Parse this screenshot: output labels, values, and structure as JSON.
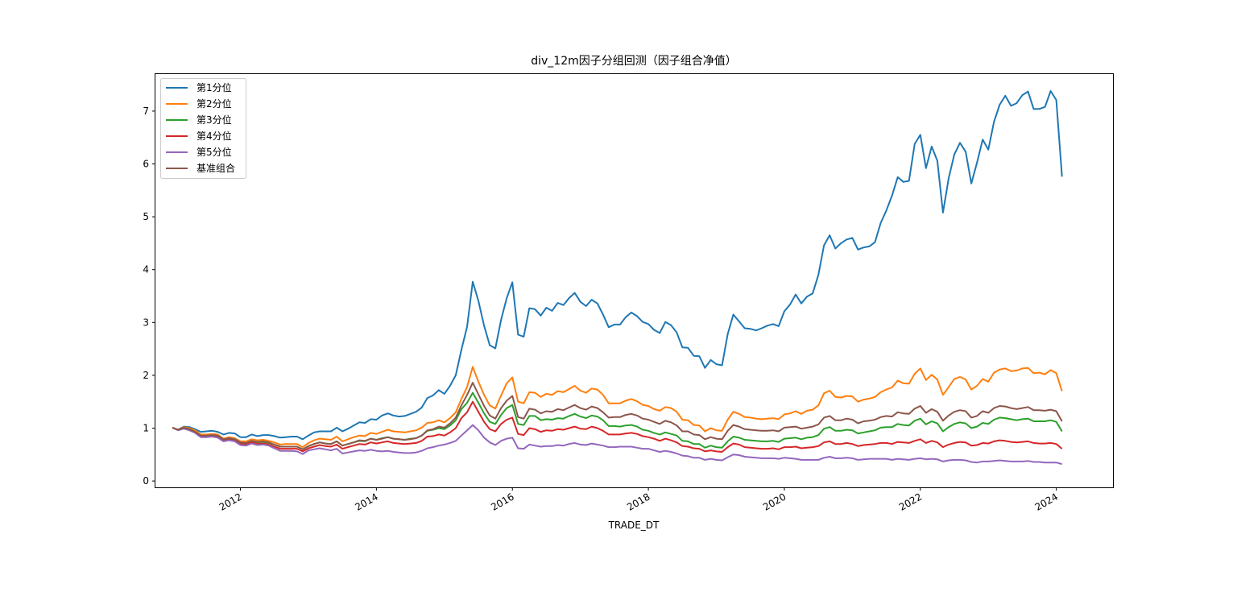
{
  "chart_data": {
    "type": "line",
    "title": "div_12m因子分组回测（因子组合净值）",
    "xlabel": "TRADE_DT",
    "ylabel": "",
    "x_tick_labels": [
      "2012",
      "2014",
      "2016",
      "2018",
      "2020",
      "2022",
      "2024"
    ],
    "y_tick_labels": [
      "0",
      "1",
      "2",
      "3",
      "4",
      "5",
      "6",
      "7"
    ],
    "xlim": [
      "2010-10",
      "2024-11"
    ],
    "ylim": [
      -0.12,
      7.7
    ],
    "grid": false,
    "legend_position": "upper-left",
    "x": [
      "2011-01",
      "2011-02",
      "2011-03",
      "2011-04",
      "2011-05",
      "2011-06",
      "2011-07",
      "2011-08",
      "2011-09",
      "2011-10",
      "2011-11",
      "2011-12",
      "2012-01",
      "2012-02",
      "2012-03",
      "2012-04",
      "2012-05",
      "2012-06",
      "2012-07",
      "2012-08",
      "2012-09",
      "2012-10",
      "2012-11",
      "2012-12",
      "2013-01",
      "2013-02",
      "2013-03",
      "2013-04",
      "2013-05",
      "2013-06",
      "2013-07",
      "2013-08",
      "2013-09",
      "2013-10",
      "2013-11",
      "2013-12",
      "2014-01",
      "2014-02",
      "2014-03",
      "2014-04",
      "2014-05",
      "2014-06",
      "2014-07",
      "2014-08",
      "2014-09",
      "2014-10",
      "2014-11",
      "2014-12",
      "2015-01",
      "2015-02",
      "2015-03",
      "2015-04",
      "2015-05",
      "2015-06",
      "2015-07",
      "2015-08",
      "2015-09",
      "2015-10",
      "2015-11",
      "2015-12",
      "2016-01",
      "2016-02",
      "2016-03",
      "2016-04",
      "2016-05",
      "2016-06",
      "2016-07",
      "2016-08",
      "2016-09",
      "2016-10",
      "2016-11",
      "2016-12",
      "2017-01",
      "2017-02",
      "2017-03",
      "2017-04",
      "2017-05",
      "2017-06",
      "2017-07",
      "2017-08",
      "2017-09",
      "2017-10",
      "2017-11",
      "2017-12",
      "2018-01",
      "2018-02",
      "2018-03",
      "2018-04",
      "2018-05",
      "2018-06",
      "2018-07",
      "2018-08",
      "2018-09",
      "2018-10",
      "2018-11",
      "2018-12",
      "2019-01",
      "2019-02",
      "2019-03",
      "2019-04",
      "2019-05",
      "2019-06",
      "2019-07",
      "2019-08",
      "2019-09",
      "2019-10",
      "2019-11",
      "2019-12",
      "2020-01",
      "2020-02",
      "2020-03",
      "2020-04",
      "2020-05",
      "2020-06",
      "2020-07",
      "2020-08",
      "2020-09",
      "2020-10",
      "2020-11",
      "2020-12",
      "2021-01",
      "2021-02",
      "2021-03",
      "2021-04",
      "2021-05",
      "2021-06",
      "2021-07",
      "2021-08",
      "2021-09",
      "2021-10",
      "2021-11",
      "2021-12",
      "2022-01",
      "2022-02",
      "2022-03",
      "2022-04",
      "2022-05",
      "2022-06",
      "2022-07",
      "2022-08",
      "2022-09",
      "2022-10",
      "2022-11",
      "2022-12",
      "2023-01",
      "2023-02",
      "2023-03",
      "2023-04",
      "2023-05",
      "2023-06",
      "2023-07",
      "2023-08",
      "2023-09",
      "2023-10",
      "2023-11",
      "2023-12",
      "2024-01",
      "2024-02"
    ],
    "series": [
      {
        "name": "第1分位",
        "color": "#1f77b4",
        "values": [
          1.01,
          0.97,
          1.03,
          1.02,
          0.98,
          0.93,
          0.94,
          0.95,
          0.93,
          0.88,
          0.91,
          0.9,
          0.83,
          0.83,
          0.88,
          0.85,
          0.87,
          0.87,
          0.85,
          0.82,
          0.83,
          0.84,
          0.84,
          0.79,
          0.86,
          0.92,
          0.94,
          0.94,
          0.94,
          1.01,
          0.94,
          0.99,
          1.05,
          1.11,
          1.1,
          1.17,
          1.16,
          1.24,
          1.28,
          1.24,
          1.22,
          1.23,
          1.27,
          1.31,
          1.39,
          1.57,
          1.62,
          1.72,
          1.65,
          1.8,
          2.0,
          2.48,
          2.92,
          3.77,
          3.41,
          2.94,
          2.57,
          2.51,
          3.05,
          3.46,
          3.76,
          2.77,
          2.73,
          3.27,
          3.25,
          3.13,
          3.28,
          3.22,
          3.37,
          3.33,
          3.46,
          3.56,
          3.39,
          3.31,
          3.43,
          3.36,
          3.15,
          2.91,
          2.96,
          2.96,
          3.1,
          3.19,
          3.12,
          3.01,
          2.97,
          2.86,
          2.8,
          3.01,
          2.95,
          2.81,
          2.53,
          2.52,
          2.37,
          2.36,
          2.14,
          2.29,
          2.21,
          2.19,
          2.78,
          3.15,
          3.02,
          2.89,
          2.88,
          2.85,
          2.89,
          2.94,
          2.97,
          2.93,
          3.21,
          3.34,
          3.53,
          3.36,
          3.49,
          3.55,
          3.9,
          4.46,
          4.65,
          4.4,
          4.5,
          4.57,
          4.6,
          4.38,
          4.42,
          4.44,
          4.52,
          4.88,
          5.12,
          5.4,
          5.75,
          5.66,
          5.68,
          6.38,
          6.55,
          5.92,
          6.33,
          6.06,
          5.08,
          5.73,
          6.18,
          6.4,
          6.23,
          5.63,
          6.02,
          6.46,
          6.27,
          6.8,
          7.12,
          7.29,
          7.1,
          7.15,
          7.3,
          7.37,
          7.04,
          7.04,
          7.08,
          7.38,
          7.21,
          5.76
        ]
      },
      {
        "name": "第2分位",
        "color": "#ff7f0e",
        "values": [
          1.01,
          0.97,
          1.02,
          1.0,
          0.96,
          0.88,
          0.88,
          0.89,
          0.88,
          0.8,
          0.83,
          0.81,
          0.75,
          0.75,
          0.79,
          0.77,
          0.78,
          0.76,
          0.73,
          0.69,
          0.7,
          0.7,
          0.7,
          0.64,
          0.72,
          0.77,
          0.8,
          0.79,
          0.78,
          0.84,
          0.75,
          0.79,
          0.83,
          0.86,
          0.85,
          0.91,
          0.89,
          0.93,
          0.97,
          0.94,
          0.93,
          0.92,
          0.94,
          0.96,
          1.01,
          1.1,
          1.11,
          1.15,
          1.11,
          1.19,
          1.3,
          1.55,
          1.78,
          2.16,
          1.88,
          1.63,
          1.43,
          1.37,
          1.62,
          1.85,
          1.96,
          1.5,
          1.47,
          1.68,
          1.67,
          1.59,
          1.65,
          1.63,
          1.7,
          1.68,
          1.74,
          1.8,
          1.71,
          1.67,
          1.75,
          1.73,
          1.63,
          1.47,
          1.47,
          1.47,
          1.52,
          1.55,
          1.51,
          1.44,
          1.42,
          1.36,
          1.33,
          1.4,
          1.38,
          1.31,
          1.16,
          1.15,
          1.06,
          1.05,
          0.94,
          1.0,
          0.96,
          0.95,
          1.16,
          1.31,
          1.27,
          1.21,
          1.2,
          1.18,
          1.17,
          1.18,
          1.19,
          1.17,
          1.26,
          1.28,
          1.32,
          1.27,
          1.33,
          1.35,
          1.43,
          1.66,
          1.71,
          1.59,
          1.58,
          1.61,
          1.6,
          1.5,
          1.54,
          1.56,
          1.59,
          1.68,
          1.73,
          1.77,
          1.9,
          1.85,
          1.84,
          2.03,
          2.13,
          1.91,
          2.01,
          1.92,
          1.63,
          1.78,
          1.93,
          1.97,
          1.92,
          1.73,
          1.8,
          1.93,
          1.88,
          2.05,
          2.11,
          2.13,
          2.08,
          2.09,
          2.13,
          2.14,
          2.04,
          2.05,
          2.02,
          2.1,
          2.04,
          1.7
        ]
      },
      {
        "name": "第3分位",
        "color": "#2ca02c",
        "values": [
          1.01,
          0.97,
          1.01,
          0.98,
          0.93,
          0.85,
          0.85,
          0.86,
          0.85,
          0.78,
          0.8,
          0.78,
          0.72,
          0.71,
          0.75,
          0.73,
          0.74,
          0.72,
          0.69,
          0.65,
          0.65,
          0.65,
          0.65,
          0.6,
          0.66,
          0.7,
          0.73,
          0.71,
          0.7,
          0.75,
          0.67,
          0.7,
          0.73,
          0.76,
          0.75,
          0.8,
          0.78,
          0.81,
          0.83,
          0.8,
          0.79,
          0.78,
          0.8,
          0.81,
          0.86,
          0.95,
          0.97,
          1.0,
          0.98,
          1.05,
          1.15,
          1.36,
          1.48,
          1.67,
          1.48,
          1.28,
          1.12,
          1.08,
          1.25,
          1.38,
          1.44,
          1.08,
          1.06,
          1.23,
          1.23,
          1.15,
          1.17,
          1.16,
          1.19,
          1.18,
          1.23,
          1.27,
          1.22,
          1.19,
          1.24,
          1.22,
          1.15,
          1.04,
          1.04,
          1.03,
          1.05,
          1.06,
          1.03,
          0.97,
          0.95,
          0.91,
          0.88,
          0.92,
          0.89,
          0.86,
          0.76,
          0.75,
          0.7,
          0.7,
          0.63,
          0.67,
          0.64,
          0.63,
          0.75,
          0.84,
          0.82,
          0.78,
          0.77,
          0.76,
          0.75,
          0.75,
          0.76,
          0.74,
          0.8,
          0.81,
          0.82,
          0.79,
          0.82,
          0.83,
          0.87,
          0.99,
          1.02,
          0.95,
          0.95,
          0.97,
          0.96,
          0.9,
          0.92,
          0.94,
          0.96,
          1.01,
          1.02,
          1.02,
          1.08,
          1.06,
          1.05,
          1.14,
          1.18,
          1.07,
          1.13,
          1.09,
          0.94,
          1.02,
          1.08,
          1.11,
          1.09,
          1.0,
          1.03,
          1.1,
          1.08,
          1.16,
          1.2,
          1.19,
          1.17,
          1.15,
          1.17,
          1.18,
          1.13,
          1.13,
          1.13,
          1.15,
          1.12,
          0.94
        ]
      },
      {
        "name": "第4分位",
        "color": "#d62728",
        "values": [
          1.01,
          0.97,
          1.0,
          0.97,
          0.92,
          0.84,
          0.84,
          0.84,
          0.83,
          0.76,
          0.78,
          0.76,
          0.7,
          0.69,
          0.73,
          0.7,
          0.71,
          0.69,
          0.65,
          0.61,
          0.61,
          0.61,
          0.61,
          0.56,
          0.62,
          0.65,
          0.68,
          0.66,
          0.65,
          0.69,
          0.61,
          0.64,
          0.67,
          0.7,
          0.69,
          0.73,
          0.71,
          0.73,
          0.75,
          0.72,
          0.71,
          0.7,
          0.71,
          0.72,
          0.76,
          0.84,
          0.85,
          0.88,
          0.86,
          0.92,
          1.0,
          1.19,
          1.3,
          1.5,
          1.31,
          1.12,
          0.98,
          0.94,
          1.08,
          1.16,
          1.2,
          0.89,
          0.87,
          1.0,
          0.98,
          0.93,
          0.96,
          0.95,
          0.98,
          0.97,
          1.0,
          1.03,
          0.99,
          0.98,
          1.03,
          1.0,
          0.95,
          0.88,
          0.88,
          0.88,
          0.9,
          0.91,
          0.89,
          0.85,
          0.83,
          0.8,
          0.76,
          0.8,
          0.77,
          0.73,
          0.66,
          0.65,
          0.62,
          0.61,
          0.56,
          0.58,
          0.56,
          0.55,
          0.64,
          0.71,
          0.69,
          0.64,
          0.63,
          0.62,
          0.61,
          0.61,
          0.62,
          0.6,
          0.64,
          0.64,
          0.65,
          0.62,
          0.63,
          0.64,
          0.66,
          0.73,
          0.75,
          0.7,
          0.7,
          0.72,
          0.7,
          0.66,
          0.68,
          0.69,
          0.7,
          0.72,
          0.72,
          0.7,
          0.74,
          0.73,
          0.72,
          0.76,
          0.79,
          0.72,
          0.76,
          0.73,
          0.64,
          0.69,
          0.72,
          0.74,
          0.73,
          0.67,
          0.68,
          0.72,
          0.71,
          0.75,
          0.77,
          0.76,
          0.74,
          0.73,
          0.74,
          0.75,
          0.72,
          0.71,
          0.71,
          0.72,
          0.7,
          0.61
        ]
      },
      {
        "name": "第5分位",
        "color": "#9467bd",
        "values": [
          1.01,
          0.96,
          0.99,
          0.96,
          0.91,
          0.83,
          0.83,
          0.84,
          0.82,
          0.75,
          0.77,
          0.75,
          0.68,
          0.67,
          0.71,
          0.68,
          0.69,
          0.67,
          0.62,
          0.57,
          0.57,
          0.57,
          0.56,
          0.51,
          0.58,
          0.6,
          0.62,
          0.6,
          0.58,
          0.61,
          0.52,
          0.54,
          0.56,
          0.58,
          0.57,
          0.59,
          0.57,
          0.56,
          0.57,
          0.55,
          0.54,
          0.53,
          0.53,
          0.54,
          0.57,
          0.62,
          0.64,
          0.67,
          0.69,
          0.72,
          0.76,
          0.86,
          0.96,
          1.06,
          0.96,
          0.82,
          0.73,
          0.68,
          0.76,
          0.8,
          0.82,
          0.62,
          0.61,
          0.69,
          0.67,
          0.65,
          0.66,
          0.66,
          0.68,
          0.67,
          0.7,
          0.72,
          0.69,
          0.68,
          0.71,
          0.69,
          0.67,
          0.64,
          0.64,
          0.65,
          0.65,
          0.65,
          0.63,
          0.61,
          0.61,
          0.58,
          0.55,
          0.57,
          0.55,
          0.52,
          0.48,
          0.47,
          0.44,
          0.44,
          0.4,
          0.42,
          0.4,
          0.39,
          0.45,
          0.5,
          0.49,
          0.46,
          0.45,
          0.44,
          0.43,
          0.43,
          0.43,
          0.42,
          0.44,
          0.43,
          0.42,
          0.4,
          0.4,
          0.4,
          0.4,
          0.44,
          0.46,
          0.43,
          0.43,
          0.44,
          0.43,
          0.4,
          0.41,
          0.42,
          0.42,
          0.42,
          0.42,
          0.4,
          0.42,
          0.41,
          0.4,
          0.42,
          0.43,
          0.41,
          0.42,
          0.41,
          0.37,
          0.39,
          0.4,
          0.4,
          0.39,
          0.36,
          0.35,
          0.37,
          0.37,
          0.38,
          0.39,
          0.38,
          0.37,
          0.37,
          0.37,
          0.38,
          0.36,
          0.36,
          0.35,
          0.35,
          0.35,
          0.32
        ]
      },
      {
        "name": "基准组合",
        "color": "#8c564b",
        "values": [
          1.01,
          0.97,
          1.01,
          0.98,
          0.93,
          0.86,
          0.86,
          0.87,
          0.86,
          0.79,
          0.81,
          0.79,
          0.73,
          0.72,
          0.76,
          0.74,
          0.75,
          0.73,
          0.69,
          0.65,
          0.65,
          0.65,
          0.65,
          0.6,
          0.66,
          0.7,
          0.73,
          0.71,
          0.7,
          0.75,
          0.67,
          0.7,
          0.73,
          0.77,
          0.76,
          0.8,
          0.78,
          0.8,
          0.83,
          0.8,
          0.79,
          0.78,
          0.79,
          0.81,
          0.86,
          0.96,
          0.98,
          1.03,
          1.01,
          1.09,
          1.2,
          1.43,
          1.63,
          1.86,
          1.64,
          1.42,
          1.24,
          1.18,
          1.38,
          1.52,
          1.61,
          1.21,
          1.18,
          1.37,
          1.35,
          1.28,
          1.32,
          1.31,
          1.36,
          1.34,
          1.39,
          1.44,
          1.38,
          1.35,
          1.41,
          1.38,
          1.3,
          1.2,
          1.21,
          1.21,
          1.25,
          1.27,
          1.24,
          1.18,
          1.16,
          1.12,
          1.08,
          1.14,
          1.11,
          1.05,
          0.94,
          0.94,
          0.88,
          0.87,
          0.79,
          0.83,
          0.8,
          0.79,
          0.95,
          1.06,
          1.03,
          0.98,
          0.97,
          0.96,
          0.95,
          0.95,
          0.96,
          0.94,
          1.01,
          1.02,
          1.03,
          0.99,
          1.01,
          1.03,
          1.07,
          1.2,
          1.23,
          1.15,
          1.15,
          1.18,
          1.16,
          1.09,
          1.13,
          1.14,
          1.16,
          1.21,
          1.23,
          1.22,
          1.3,
          1.28,
          1.27,
          1.37,
          1.42,
          1.29,
          1.36,
          1.31,
          1.14,
          1.24,
          1.31,
          1.34,
          1.32,
          1.2,
          1.23,
          1.32,
          1.29,
          1.38,
          1.42,
          1.41,
          1.38,
          1.36,
          1.38,
          1.4,
          1.34,
          1.34,
          1.33,
          1.35,
          1.32,
          1.13
        ]
      }
    ]
  }
}
